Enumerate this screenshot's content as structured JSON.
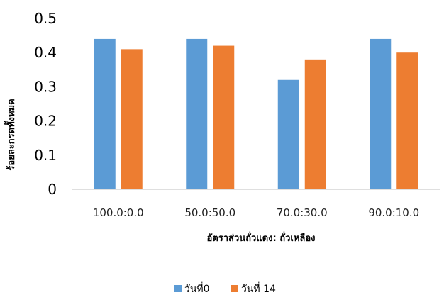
{
  "chart_data": {
    "type": "bar",
    "xlabel": "อัตราส่วนถั่วแดง: ถั่วเหลือง",
    "ylabel": "ร้อยละกรดทั้งหมด",
    "categories": [
      "100.0:0.0",
      "50.0:50.0",
      "70.0:30.0",
      "90.0:10.0"
    ],
    "series": [
      {
        "name": "วันที่0",
        "color": "#5b9bd5",
        "values": [
          0.44,
          0.44,
          0.32,
          0.44
        ]
      },
      {
        "name": "วันที่ 14",
        "color": "#ed7d31",
        "values": [
          0.41,
          0.42,
          0.38,
          0.4
        ]
      }
    ],
    "ylim": [
      0,
      0.5
    ],
    "yticks": [
      "0",
      "0.1",
      "0.2",
      "0.3",
      "0.4",
      "0.5"
    ],
    "grid": false,
    "legend": "bottom"
  }
}
